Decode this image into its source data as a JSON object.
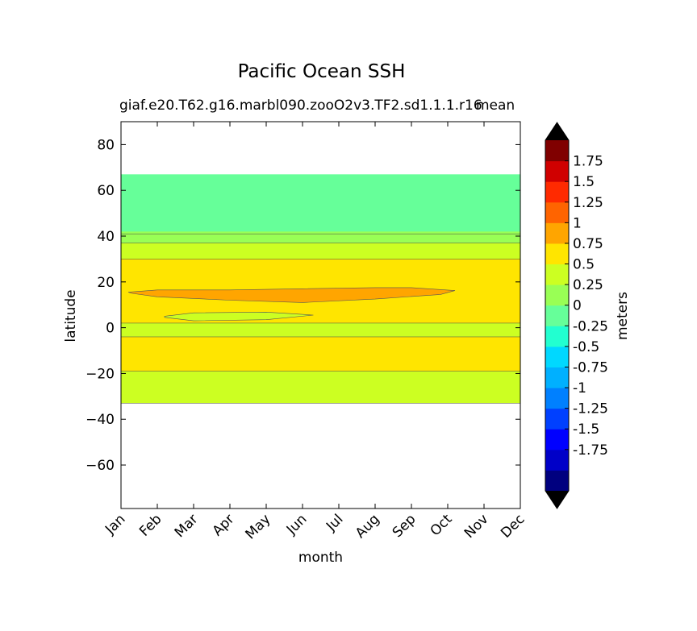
{
  "chart_data": {
    "type": "contour",
    "title": "Pacific Ocean SSH",
    "subtitle_left": "giaf.e20.T62.g16.marbl090.zooO2v3.TF2.sd1.1.1.r16",
    "subtitle_right": "mean",
    "xlabel": "month",
    "ylabel": "latitude",
    "colorbar_label": "meters",
    "x_ticks": [
      "Jan",
      "Feb",
      "Mar",
      "Apr",
      "May",
      "Jun",
      "Jul",
      "Aug",
      "Sep",
      "Oct",
      "Nov",
      "Dec"
    ],
    "y_ticks": [
      "80",
      "60",
      "40",
      "20",
      "0",
      "−20",
      "−40",
      "−60"
    ],
    "y_tick_values": [
      80,
      60,
      40,
      20,
      0,
      -20,
      -40,
      -60
    ],
    "xlim": [
      0,
      11
    ],
    "ylim": [
      -79,
      90
    ],
    "colorbar_ticks": [
      "1.75",
      "1.5",
      "1.25",
      "1",
      "0.75",
      "0.5",
      "0.25",
      "0",
      "-0.25",
      "-0.5",
      "-0.75",
      "-1",
      "-1.25",
      "-1.5",
      "-1.75"
    ],
    "levels": [
      -2.0,
      -1.75,
      -1.5,
      -1.25,
      -1.0,
      -0.75,
      -0.5,
      -0.25,
      0.0,
      0.25,
      0.5,
      0.75,
      1.0,
      1.25,
      1.5,
      1.75,
      2.0
    ],
    "level_colors": [
      "#00007f",
      "#0000c8",
      "#0000ff",
      "#0040ff",
      "#0080ff",
      "#00b0ff",
      "#00d8ff",
      "#22ffd0",
      "#66ff99",
      "#99ff55",
      "#ccff22",
      "#ffe500",
      "#ffa500",
      "#ff6400",
      "#ff2a00",
      "#d00000",
      "#800000"
    ],
    "over_color": "#000000",
    "under_color": "#000000",
    "bands": [
      {
        "range": "-0.25 to 0",
        "color": "#66ff99",
        "lat_south": 41,
        "lat_north": 67
      },
      {
        "range": "0 to 0.25",
        "color": "#99ff55",
        "lat_south": 37,
        "lat_north": 42
      },
      {
        "range": "0.25 to 0.5",
        "color": "#ccff22",
        "lat_south": 30,
        "lat_north": 37
      },
      {
        "range": "0.5 to 0.75",
        "color": "#ffe500",
        "lat_south": 2,
        "lat_north": 30
      },
      {
        "range": "0.75 to 1",
        "color": "#ffa500",
        "lat_south": 11,
        "lat_north": 17
      },
      {
        "range": "0.25 to 0.5",
        "color": "#ccff22",
        "lat_south": -4,
        "lat_north": 2
      },
      {
        "range": "0.5 to 0.75",
        "color": "#ffe500",
        "lat_south": -19,
        "lat_north": -4
      },
      {
        "range": "0.25 to 0.5",
        "color": "#ccff22",
        "lat_south": -33,
        "lat_north": -19
      }
    ],
    "grid": false
  }
}
